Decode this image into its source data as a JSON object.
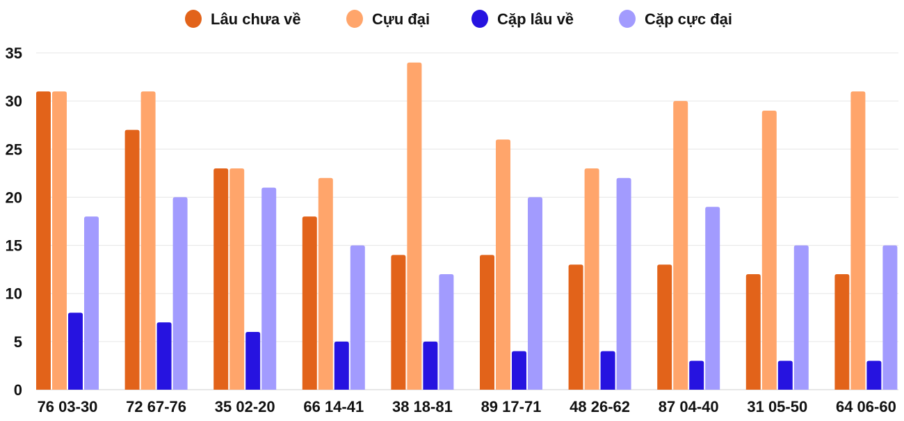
{
  "chart_data": {
    "type": "bar",
    "categories": [
      "76 03-30",
      "72 67-76",
      "35 02-20",
      "66 14-41",
      "38 18-81",
      "89 17-71",
      "48 26-62",
      "87 04-40",
      "31 05-50",
      "64 06-60"
    ],
    "series": [
      {
        "name": "Lâu chưa về",
        "color": "#e2631a",
        "values": [
          31,
          27,
          23,
          18,
          14,
          14,
          13,
          13,
          12,
          12
        ]
      },
      {
        "name": "Cựu đại",
        "color": "#ffa56b",
        "values": [
          31,
          31,
          23,
          22,
          34,
          26,
          23,
          30,
          29,
          31
        ]
      },
      {
        "name": "Cặp lâu về",
        "color": "#2613e0",
        "values": [
          8,
          7,
          6,
          5,
          5,
          4,
          4,
          3,
          3,
          3
        ]
      },
      {
        "name": "Cặp cực đại",
        "color": "#a29bfe",
        "values": [
          18,
          20,
          21,
          15,
          12,
          20,
          22,
          19,
          15,
          15
        ]
      }
    ],
    "yticks": [
      "0",
      "5",
      "10",
      "15",
      "20",
      "25",
      "30",
      "35"
    ],
    "ylim": [
      0,
      35
    ],
    "grid": true,
    "legend": "top-center",
    "title": "",
    "xlabel": "",
    "ylabel": ""
  }
}
